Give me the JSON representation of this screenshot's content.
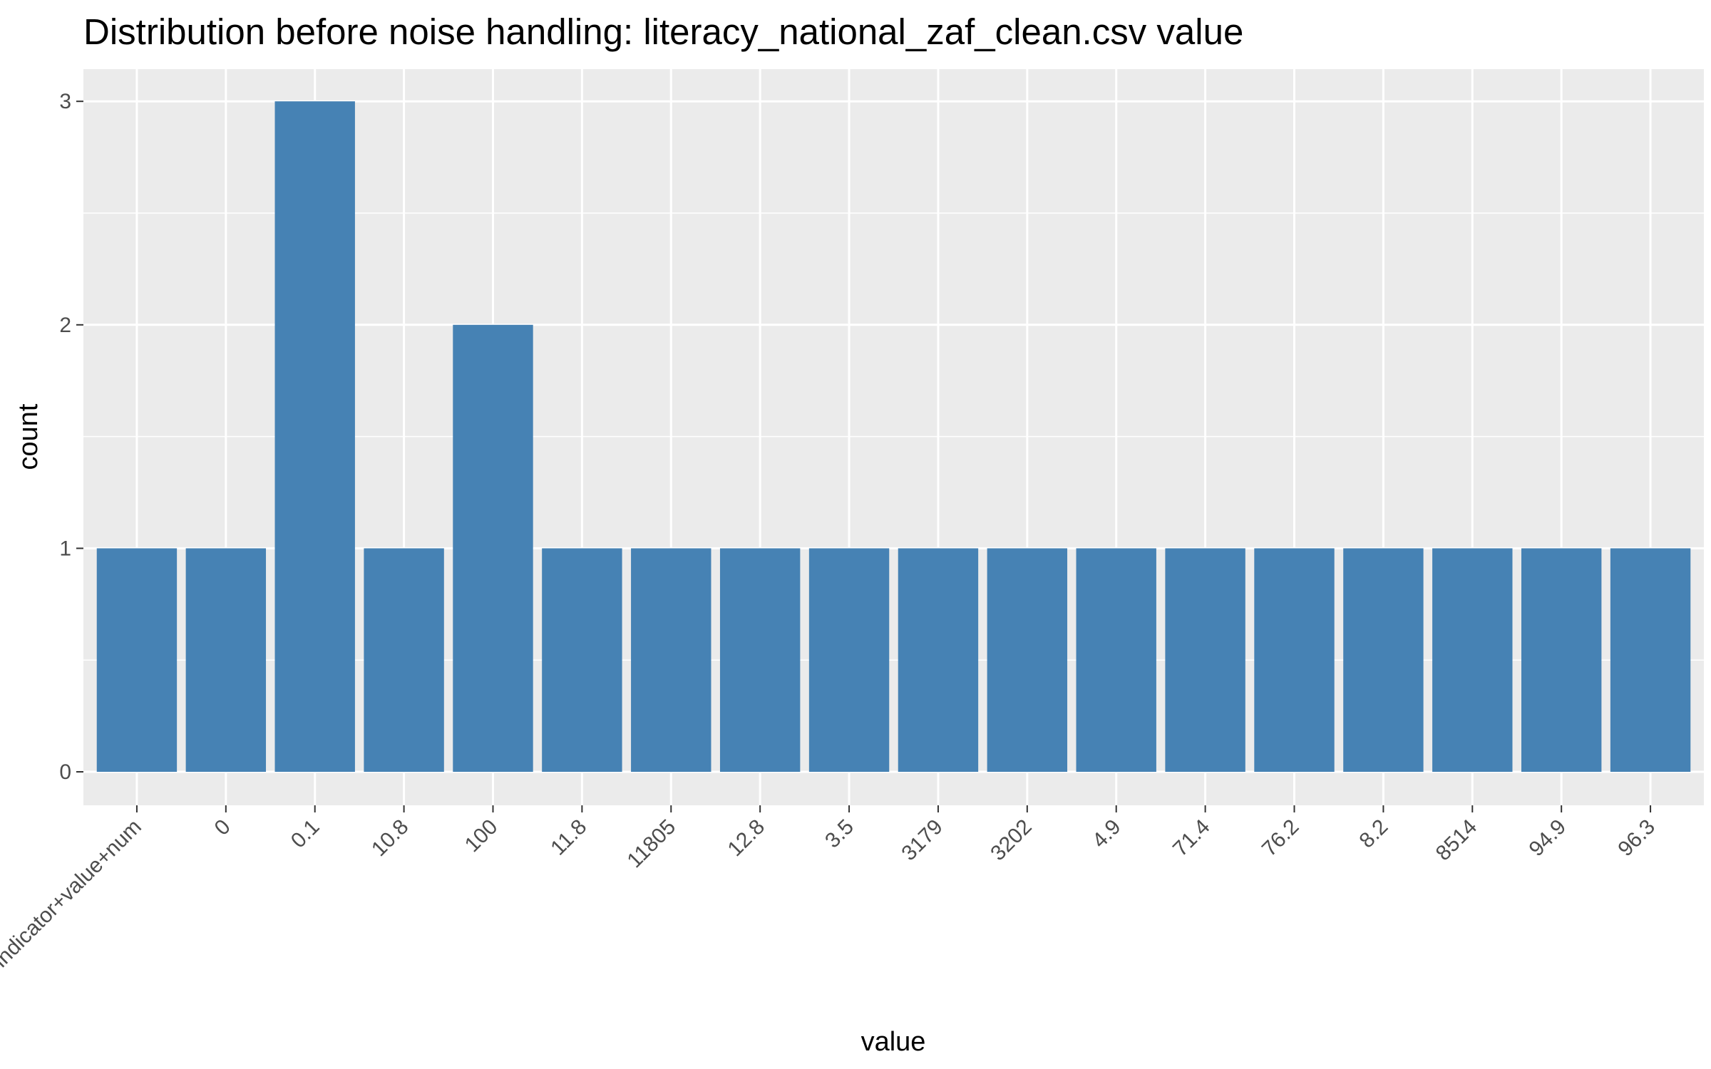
{
  "chart_data": {
    "type": "bar",
    "title": "Distribution before noise handling: literacy_national_zaf_clean.csv value",
    "xlabel": "value",
    "ylabel": "count",
    "categories": [
      "indicator+value+num",
      "0",
      "0.1",
      "10.8",
      "100",
      "11.8",
      "11805",
      "12.8",
      "3.5",
      "3179",
      "3202",
      "4.9",
      "71.4",
      "76.2",
      "8.2",
      "8514",
      "94.9",
      "96.3"
    ],
    "values": [
      1,
      1,
      3,
      1,
      2,
      1,
      1,
      1,
      1,
      1,
      1,
      1,
      1,
      1,
      1,
      1,
      1,
      1
    ],
    "ylim": [
      0,
      3
    ],
    "y_ticks": [
      0,
      1,
      2,
      3
    ],
    "bar_color": "#4682B4",
    "panel_background": "#EBEBEB",
    "grid": true,
    "legend": "none"
  }
}
